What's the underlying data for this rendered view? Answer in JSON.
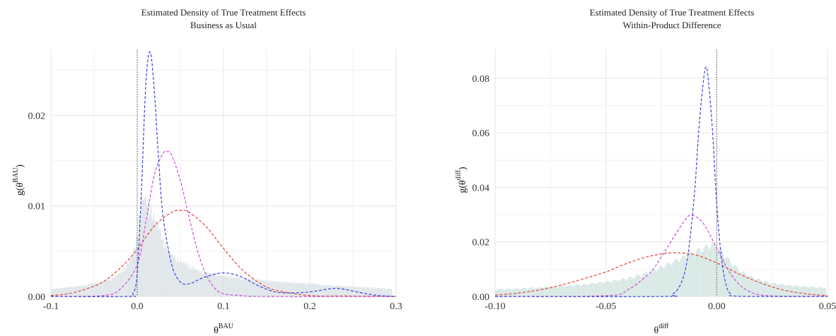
{
  "chart_data": [
    {
      "type": "line",
      "title": "Estimated Density of True Treatment Effects",
      "subtitle": "Business as Usual",
      "xlabel_base": "θ",
      "xlabel_sup": "BAU",
      "ylabel_prefix": "g(θ",
      "ylabel_sup": "BAU",
      "ylabel_suffix": ")",
      "xlim": [
        -0.1,
        0.3
      ],
      "ylim": [
        0,
        0.0265
      ],
      "xticks": [
        -0.1,
        0.0,
        0.1,
        0.2,
        0.3
      ],
      "xtick_labels": [
        "-0.1",
        "0.0",
        "0.1",
        "0.2",
        "0.3"
      ],
      "yticks": [
        0.0,
        0.01,
        0.02
      ],
      "ytick_labels": [
        "0.00",
        "0.01",
        "0.02"
      ],
      "vline_x": 0.0,
      "grid": true,
      "histogram": {
        "color": "#dde3e7",
        "bins": [
          [
            -0.1,
            0.0008
          ],
          [
            -0.09,
            0.0009
          ],
          [
            -0.08,
            0.001
          ],
          [
            -0.07,
            0.0011
          ],
          [
            -0.06,
            0.0012
          ],
          [
            -0.05,
            0.0014
          ],
          [
            -0.04,
            0.0016
          ],
          [
            -0.03,
            0.0019
          ],
          [
            -0.02,
            0.0025
          ],
          [
            -0.015,
            0.003
          ],
          [
            -0.01,
            0.0036
          ],
          [
            -0.005,
            0.0045
          ],
          [
            0.0,
            0.0065
          ],
          [
            0.005,
            0.0105
          ],
          [
            0.01,
            0.0105
          ],
          [
            0.015,
            0.0095
          ],
          [
            0.02,
            0.0085
          ],
          [
            0.025,
            0.0075
          ],
          [
            0.03,
            0.006
          ],
          [
            0.035,
            0.0052
          ],
          [
            0.04,
            0.0045
          ],
          [
            0.05,
            0.0038
          ],
          [
            0.06,
            0.0033
          ],
          [
            0.07,
            0.0028
          ],
          [
            0.08,
            0.0026
          ],
          [
            0.09,
            0.0024
          ],
          [
            0.1,
            0.0022
          ],
          [
            0.12,
            0.002
          ],
          [
            0.14,
            0.0018
          ],
          [
            0.16,
            0.0016
          ],
          [
            0.18,
            0.0015
          ],
          [
            0.2,
            0.0014
          ],
          [
            0.22,
            0.0012
          ],
          [
            0.24,
            0.0011
          ],
          [
            0.26,
            0.001
          ],
          [
            0.28,
            0.0009
          ],
          [
            0.295,
            0.0008
          ]
        ]
      },
      "series": [
        {
          "color": "#e0453a",
          "x": [
            -0.1,
            -0.08,
            -0.06,
            -0.04,
            -0.02,
            0.0,
            0.02,
            0.04,
            0.05,
            0.06,
            0.08,
            0.1,
            0.12,
            0.14,
            0.16,
            0.2,
            0.24,
            0.3
          ],
          "values": [
            0.0001,
            0.0003,
            0.0008,
            0.0016,
            0.0031,
            0.0052,
            0.0078,
            0.0093,
            0.0095,
            0.0093,
            0.0077,
            0.0053,
            0.0031,
            0.0016,
            0.0007,
            0.0001,
            5e-05,
            0.0
          ]
        },
        {
          "color": "#cc4bd6",
          "x": [
            -0.1,
            -0.04,
            -0.02,
            0.0,
            0.01,
            0.02,
            0.03,
            0.035,
            0.04,
            0.05,
            0.06,
            0.07,
            0.08,
            0.09,
            0.1,
            0.12,
            0.15,
            0.3
          ],
          "values": [
            0.0,
            0.0001,
            0.0008,
            0.0035,
            0.0082,
            0.0135,
            0.0158,
            0.016,
            0.0156,
            0.0128,
            0.0088,
            0.005,
            0.0024,
            0.0009,
            0.0003,
            0.0001,
            0.0,
            0.0
          ]
        },
        {
          "color": "#3a3fe0",
          "x": [
            -0.1,
            -0.01,
            -0.005,
            0.0,
            0.005,
            0.01,
            0.015,
            0.02,
            0.025,
            0.03,
            0.04,
            0.05,
            0.06,
            0.07,
            0.08,
            0.1,
            0.12,
            0.14,
            0.16,
            0.18,
            0.2,
            0.22,
            0.23,
            0.24,
            0.26,
            0.28,
            0.3
          ],
          "values": [
            0.0,
            0.0,
            0.0003,
            0.0025,
            0.012,
            0.0235,
            0.027,
            0.0225,
            0.0148,
            0.0088,
            0.0035,
            0.0016,
            0.0014,
            0.0018,
            0.0022,
            0.0026,
            0.0022,
            0.0012,
            0.0005,
            0.0004,
            0.0005,
            0.0008,
            0.0009,
            0.0008,
            0.0004,
            0.0001,
            0.0
          ]
        }
      ]
    },
    {
      "type": "line",
      "title": "Estimated Density of True Treatment Effects",
      "subtitle": "Within-Product Difference",
      "xlabel_base": "θ",
      "xlabel_sup": "diff",
      "ylabel_prefix": "g(θ",
      "ylabel_sup": "diff",
      "ylabel_suffix": ")",
      "xlim": [
        -0.1,
        0.05
      ],
      "ylim": [
        0,
        0.088
      ],
      "xticks": [
        -0.1,
        -0.05,
        0.0,
        0.05
      ],
      "xtick_labels": [
        "-0.10",
        "-0.05",
        "0.00",
        "0.05"
      ],
      "yticks": [
        0.0,
        0.02,
        0.04,
        0.06,
        0.08
      ],
      "ytick_labels": [
        "0.00",
        "0.02",
        "0.04",
        "0.06",
        "0.08"
      ],
      "vline_x": 0.0,
      "grid": true,
      "histogram": {
        "color": "#d4e6e2",
        "bins": [
          [
            -0.1,
            0.0025
          ],
          [
            -0.09,
            0.0028
          ],
          [
            -0.08,
            0.0032
          ],
          [
            -0.07,
            0.0037
          ],
          [
            -0.06,
            0.0043
          ],
          [
            -0.05,
            0.0052
          ],
          [
            -0.04,
            0.0065
          ],
          [
            -0.035,
            0.0075
          ],
          [
            -0.03,
            0.0088
          ],
          [
            -0.025,
            0.0105
          ],
          [
            -0.02,
            0.0122
          ],
          [
            -0.015,
            0.014
          ],
          [
            -0.01,
            0.0158
          ],
          [
            -0.005,
            0.0175
          ],
          [
            -0.002,
            0.0185
          ],
          [
            0.0,
            0.0178
          ],
          [
            0.003,
            0.0155
          ],
          [
            0.006,
            0.0125
          ],
          [
            0.01,
            0.0095
          ],
          [
            0.015,
            0.0072
          ],
          [
            0.02,
            0.0058
          ],
          [
            0.025,
            0.0048
          ],
          [
            0.03,
            0.0042
          ],
          [
            0.035,
            0.0038
          ],
          [
            0.04,
            0.0035
          ],
          [
            0.045,
            0.0033
          ],
          [
            0.049,
            0.0032
          ]
        ]
      },
      "series": [
        {
          "color": "#e0453a",
          "x": [
            -0.1,
            -0.09,
            -0.08,
            -0.07,
            -0.06,
            -0.05,
            -0.04,
            -0.03,
            -0.02,
            -0.01,
            0.0,
            0.01,
            0.02,
            0.03,
            0.04,
            0.05
          ],
          "values": [
            0.0005,
            0.0012,
            0.0024,
            0.0042,
            0.0065,
            0.009,
            0.0123,
            0.0148,
            0.016,
            0.0153,
            0.0123,
            0.0083,
            0.0049,
            0.0024,
            0.001,
            0.0003
          ]
        },
        {
          "color": "#cc4bd6",
          "x": [
            -0.1,
            -0.05,
            -0.04,
            -0.03,
            -0.025,
            -0.02,
            -0.015,
            -0.012,
            -0.008,
            -0.005,
            0.0,
            0.005,
            0.01,
            0.015,
            0.02,
            0.03,
            0.05
          ],
          "values": [
            0.0,
            0.0003,
            0.0025,
            0.0088,
            0.0145,
            0.021,
            0.0272,
            0.0298,
            0.0285,
            0.0255,
            0.0178,
            0.01,
            0.0045,
            0.0017,
            0.0005,
            0.0001,
            0.0
          ]
        },
        {
          "color": "#3a3fe0",
          "x": [
            -0.1,
            -0.025,
            -0.02,
            -0.016,
            -0.013,
            -0.01,
            -0.008,
            -0.006,
            -0.005,
            -0.004,
            -0.002,
            0.0,
            0.002,
            0.004,
            0.006,
            0.01,
            0.05
          ],
          "values": [
            0.0,
            0.0,
            0.0008,
            0.005,
            0.015,
            0.038,
            0.062,
            0.079,
            0.084,
            0.081,
            0.062,
            0.034,
            0.015,
            0.005,
            0.0012,
            0.0001,
            0.0
          ]
        }
      ]
    }
  ]
}
